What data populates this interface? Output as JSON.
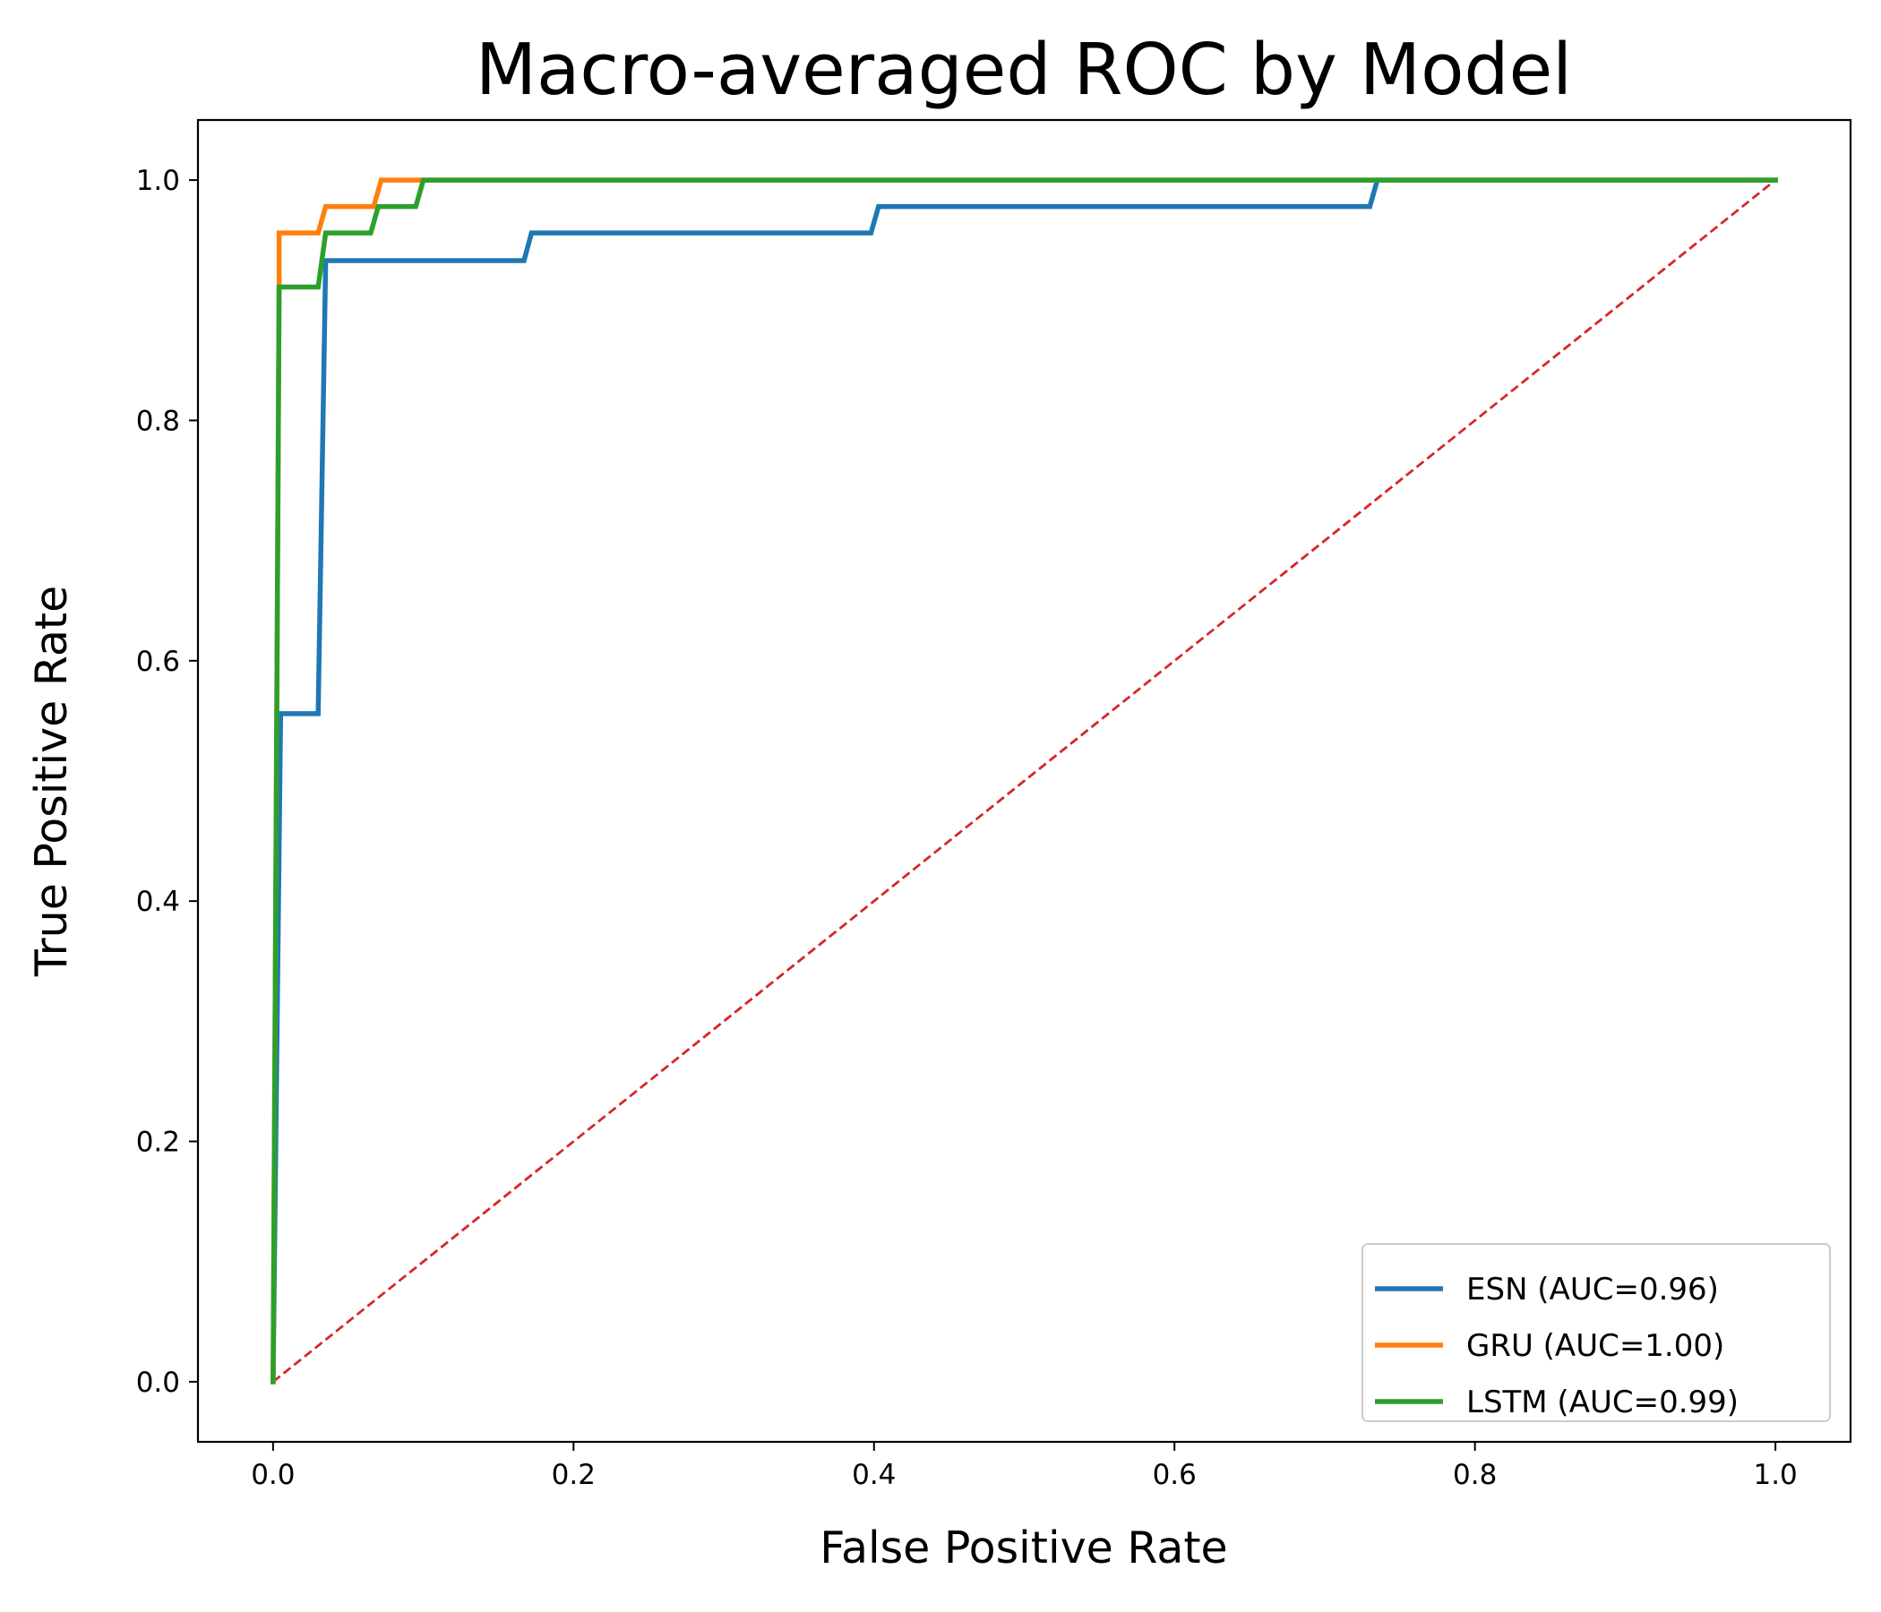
{
  "chart_data": {
    "type": "line",
    "title": "Macro-averaged ROC by Model",
    "xlabel": "False Positive Rate",
    "ylabel": "True Positive Rate",
    "xlim": [
      -0.05,
      1.05
    ],
    "ylim": [
      -0.05,
      1.05
    ],
    "xticks": [
      "0.0",
      "0.2",
      "0.4",
      "0.6",
      "0.8",
      "1.0"
    ],
    "yticks": [
      "0.0",
      "0.2",
      "0.4",
      "0.6",
      "0.8",
      "1.0"
    ],
    "grid": false,
    "legend_position": "lower right",
    "series": [
      {
        "name": "ESN (AUC=0.96)",
        "color": "#1f77b4",
        "x": [
          0.0,
          0.005,
          0.005,
          0.03,
          0.035,
          0.167,
          0.172,
          0.398,
          0.403,
          0.73,
          0.735,
          1.0
        ],
        "y": [
          0.0,
          0.556,
          0.556,
          0.556,
          0.933,
          0.933,
          0.956,
          0.956,
          0.978,
          0.978,
          1.0,
          1.0
        ]
      },
      {
        "name": "GRU (AUC=1.00)",
        "color": "#ff7f0e",
        "x": [
          0.0,
          0.004,
          0.004,
          0.03,
          0.035,
          0.067,
          0.072,
          0.1,
          1.0
        ],
        "y": [
          0.0,
          0.911,
          0.956,
          0.956,
          0.978,
          0.978,
          1.0,
          1.0,
          1.0
        ]
      },
      {
        "name": "LSTM (AUC=0.99)",
        "color": "#2ca02c",
        "x": [
          0.0,
          0.004,
          0.03,
          0.035,
          0.065,
          0.07,
          0.095,
          0.1,
          1.0
        ],
        "y": [
          0.0,
          0.911,
          0.911,
          0.956,
          0.956,
          0.978,
          0.978,
          1.0,
          1.0
        ]
      }
    ],
    "reference_line": {
      "x": [
        0.0,
        1.0
      ],
      "y": [
        0.0,
        1.0
      ],
      "color": "#d62728",
      "style": "dashed"
    }
  }
}
